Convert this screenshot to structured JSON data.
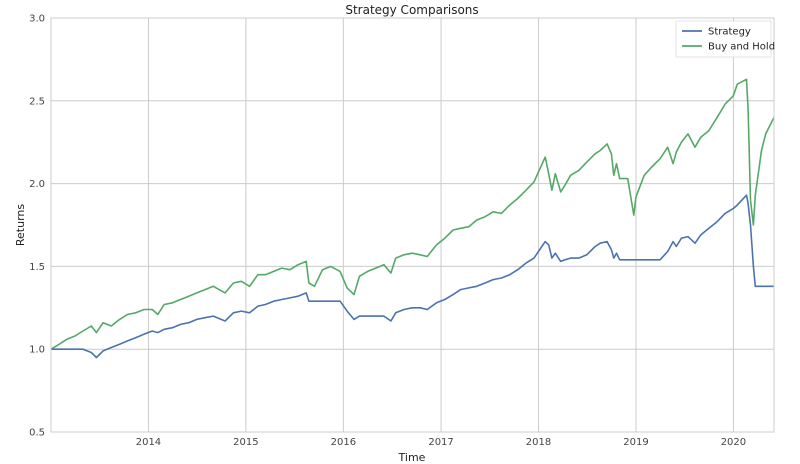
{
  "chart_data": {
    "type": "line",
    "title": "Strategy Comparisons",
    "xlabel": "Time",
    "ylabel": "Returns",
    "xlim": [
      "2013-01-01",
      "2020-06-01"
    ],
    "ylim": [
      0.5,
      3.0
    ],
    "yticks": [
      0.5,
      1.0,
      1.5,
      2.0,
      2.5,
      3.0
    ],
    "yticklabels": [
      "0.5",
      "1.0",
      "1.5",
      "2.0",
      "2.5",
      "3.0"
    ],
    "xticks": [
      "2014-01-01",
      "2015-01-01",
      "2016-01-01",
      "2017-01-01",
      "2018-01-01",
      "2019-01-01",
      "2020-01-01"
    ],
    "xticklabels": [
      "2014",
      "2015",
      "2016",
      "2017",
      "2018",
      "2019",
      "2020"
    ],
    "grid": true,
    "legend_position": "top-right",
    "series": [
      {
        "name": "Strategy",
        "color": "#4c72b0",
        "x": [
          "2013-01-01",
          "2013-02-01",
          "2013-03-01",
          "2013-04-01",
          "2013-05-01",
          "2013-06-01",
          "2013-06-20",
          "2013-07-15",
          "2013-08-15",
          "2013-09-15",
          "2013-10-15",
          "2013-11-15",
          "2013-12-15",
          "2014-01-15",
          "2014-02-05",
          "2014-03-01",
          "2014-04-01",
          "2014-05-01",
          "2014-06-01",
          "2014-07-01",
          "2014-08-01",
          "2014-09-01",
          "2014-10-15",
          "2014-11-15",
          "2014-12-15",
          "2015-01-15",
          "2015-02-15",
          "2015-03-15",
          "2015-04-15",
          "2015-05-15",
          "2015-06-15",
          "2015-07-15",
          "2015-08-15",
          "2015-08-25",
          "2015-09-15",
          "2015-10-15",
          "2015-11-15",
          "2015-12-20",
          "2016-01-15",
          "2016-02-10",
          "2016-03-01",
          "2016-04-01",
          "2016-05-01",
          "2016-06-01",
          "2016-06-27",
          "2016-07-15",
          "2016-08-15",
          "2016-09-15",
          "2016-10-15",
          "2016-11-10",
          "2016-12-15",
          "2017-01-15",
          "2017-02-15",
          "2017-03-15",
          "2017-04-15",
          "2017-05-15",
          "2017-06-15",
          "2017-07-15",
          "2017-08-15",
          "2017-09-15",
          "2017-10-15",
          "2017-11-15",
          "2017-12-15",
          "2018-01-26",
          "2018-02-08",
          "2018-02-20",
          "2018-03-05",
          "2018-03-25",
          "2018-04-10",
          "2018-05-01",
          "2018-06-01",
          "2018-07-01",
          "2018-08-01",
          "2018-08-20",
          "2018-09-15",
          "2018-10-01",
          "2018-10-10",
          "2018-10-20",
          "2018-11-01",
          "2018-12-01",
          "2019-01-01",
          "2019-02-01",
          "2019-03-01",
          "2019-04-01",
          "2019-04-30",
          "2019-05-20",
          "2019-06-01",
          "2019-06-20",
          "2019-07-15",
          "2019-08-10",
          "2019-09-01",
          "2019-10-01",
          "2019-11-01",
          "2019-12-01",
          "2020-01-01",
          "2020-01-15",
          "2020-02-19",
          "2020-02-25",
          "2020-03-05",
          "2020-03-16",
          "2020-03-23",
          "2020-04-15",
          "2020-06-01"
        ],
        "values": [
          1.0,
          1.0,
          1.0,
          1.0,
          1.0,
          0.98,
          0.95,
          0.99,
          1.01,
          1.03,
          1.05,
          1.07,
          1.09,
          1.11,
          1.1,
          1.12,
          1.13,
          1.15,
          1.16,
          1.18,
          1.19,
          1.2,
          1.17,
          1.22,
          1.23,
          1.22,
          1.26,
          1.27,
          1.29,
          1.3,
          1.31,
          1.32,
          1.34,
          1.29,
          1.29,
          1.29,
          1.29,
          1.29,
          1.23,
          1.18,
          1.2,
          1.2,
          1.2,
          1.2,
          1.17,
          1.22,
          1.24,
          1.25,
          1.25,
          1.24,
          1.28,
          1.3,
          1.33,
          1.36,
          1.37,
          1.38,
          1.4,
          1.42,
          1.43,
          1.45,
          1.48,
          1.52,
          1.55,
          1.65,
          1.63,
          1.55,
          1.58,
          1.53,
          1.54,
          1.55,
          1.55,
          1.57,
          1.62,
          1.64,
          1.65,
          1.6,
          1.55,
          1.58,
          1.54,
          1.54,
          1.54,
          1.54,
          1.54,
          1.54,
          1.59,
          1.65,
          1.62,
          1.67,
          1.68,
          1.64,
          1.69,
          1.73,
          1.77,
          1.82,
          1.85,
          1.87,
          1.93,
          1.88,
          1.75,
          1.5,
          1.38,
          1.38,
          1.38
        ]
      },
      {
        "name": "Buy and Hold",
        "color": "#55a868",
        "x": [
          "2013-01-01",
          "2013-02-01",
          "2013-03-01",
          "2013-04-01",
          "2013-05-01",
          "2013-06-01",
          "2013-06-20",
          "2013-07-15",
          "2013-08-15",
          "2013-09-15",
          "2013-10-15",
          "2013-11-15",
          "2013-12-15",
          "2014-01-15",
          "2014-02-05",
          "2014-03-01",
          "2014-04-01",
          "2014-05-01",
          "2014-06-01",
          "2014-07-01",
          "2014-08-01",
          "2014-09-01",
          "2014-10-15",
          "2014-11-15",
          "2014-12-15",
          "2015-01-15",
          "2015-02-15",
          "2015-03-15",
          "2015-04-15",
          "2015-05-15",
          "2015-06-15",
          "2015-07-15",
          "2015-08-15",
          "2015-08-25",
          "2015-09-15",
          "2015-10-15",
          "2015-11-15",
          "2015-12-20",
          "2016-01-15",
          "2016-02-10",
          "2016-03-01",
          "2016-04-01",
          "2016-05-01",
          "2016-06-01",
          "2016-06-27",
          "2016-07-15",
          "2016-08-15",
          "2016-09-15",
          "2016-10-15",
          "2016-11-10",
          "2016-12-15",
          "2017-01-15",
          "2017-02-15",
          "2017-03-15",
          "2017-04-15",
          "2017-05-15",
          "2017-06-15",
          "2017-07-15",
          "2017-08-15",
          "2017-09-15",
          "2017-10-15",
          "2017-11-15",
          "2017-12-15",
          "2018-01-26",
          "2018-02-08",
          "2018-02-20",
          "2018-03-05",
          "2018-03-25",
          "2018-04-10",
          "2018-05-01",
          "2018-06-01",
          "2018-07-01",
          "2018-08-01",
          "2018-08-20",
          "2018-09-15",
          "2018-10-01",
          "2018-10-10",
          "2018-10-20",
          "2018-11-01",
          "2018-12-01",
          "2018-12-24",
          "2019-01-01",
          "2019-02-01",
          "2019-03-01",
          "2019-04-01",
          "2019-04-30",
          "2019-05-20",
          "2019-06-01",
          "2019-06-20",
          "2019-07-15",
          "2019-08-10",
          "2019-09-01",
          "2019-10-01",
          "2019-11-01",
          "2019-12-01",
          "2020-01-01",
          "2020-01-15",
          "2020-02-19",
          "2020-02-25",
          "2020-03-05",
          "2020-03-16",
          "2020-03-23",
          "2020-04-15",
          "2020-05-01",
          "2020-06-01"
        ],
        "values": [
          1.0,
          1.03,
          1.06,
          1.08,
          1.11,
          1.14,
          1.1,
          1.16,
          1.14,
          1.18,
          1.21,
          1.22,
          1.24,
          1.24,
          1.21,
          1.27,
          1.28,
          1.3,
          1.32,
          1.34,
          1.36,
          1.38,
          1.34,
          1.4,
          1.41,
          1.38,
          1.45,
          1.45,
          1.47,
          1.49,
          1.48,
          1.51,
          1.53,
          1.4,
          1.38,
          1.48,
          1.5,
          1.47,
          1.37,
          1.33,
          1.44,
          1.47,
          1.49,
          1.51,
          1.46,
          1.55,
          1.57,
          1.58,
          1.57,
          1.56,
          1.63,
          1.67,
          1.72,
          1.73,
          1.74,
          1.78,
          1.8,
          1.83,
          1.82,
          1.87,
          1.91,
          1.96,
          2.01,
          2.16,
          2.06,
          1.96,
          2.06,
          1.95,
          1.99,
          2.05,
          2.08,
          2.13,
          2.18,
          2.2,
          2.24,
          2.18,
          2.05,
          2.12,
          2.03,
          2.03,
          1.81,
          1.92,
          2.05,
          2.1,
          2.15,
          2.22,
          2.12,
          2.19,
          2.25,
          2.3,
          2.22,
          2.28,
          2.32,
          2.4,
          2.48,
          2.53,
          2.6,
          2.63,
          2.45,
          1.9,
          1.75,
          1.93,
          2.2,
          2.3,
          2.4
        ]
      }
    ]
  }
}
